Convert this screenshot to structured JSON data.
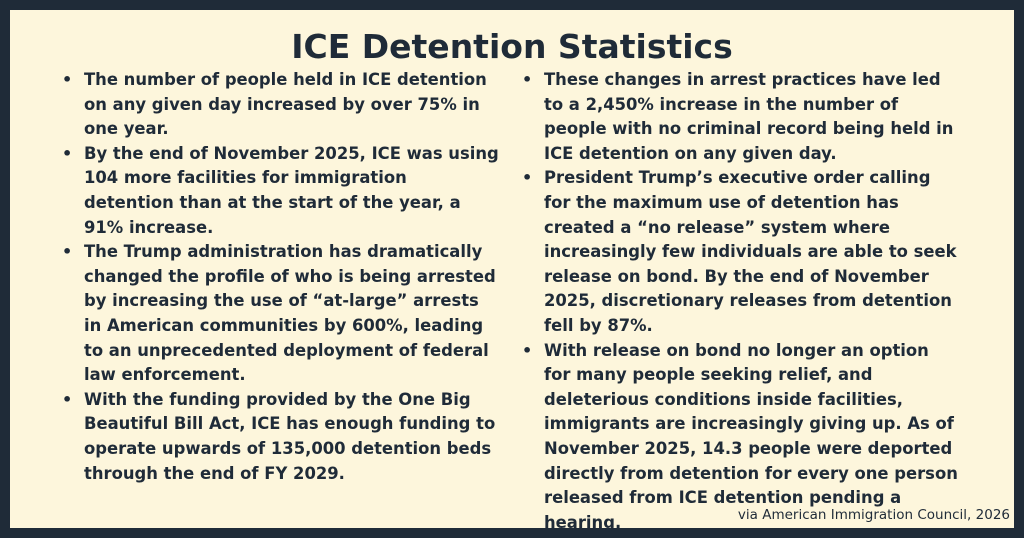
{
  "title": "ICE Detention Statistics",
  "colors": {
    "frame": "#1f2b38",
    "background": "#fdf6dc",
    "text": "#1f2b38"
  },
  "left_column": [
    "The number of people held in ICE detention on any given day increased by over 75% in one year.",
    "By the end of November 2025, ICE was using 104 more facilities for immigration detention than at the start of the year, a 91% increase.",
    "The Trump administration has dramatically changed the profile of who is being arrested by increasing the use of “at-large” arrests in American communities by 600%, leading to an unprecedented deployment of federal law enforcement.",
    "With the funding provided by the One Big Beautiful Bill Act, ICE has enough funding to operate upwards of 135,000 detention beds through the end of FY 2029."
  ],
  "right_column": [
    "These changes in arrest practices have led to a 2,450% increase in the number of people with no criminal record being held in ICE detention on any given day.",
    "President Trump’s executive order calling for the maximum use of detention has created a “no release” system where increasingly few individuals are able to seek release on bond. By the end of November 2025, discretionary releases from detention fell by 87%.",
    "With release on bond no longer an option for many people seeking relief, and deleterious conditions inside facilities, immigrants are increasingly giving up. As of November 2025, 14.3 people were deported directly from detention for every one person released from ICE detention pending a hearing."
  ],
  "bullet_glyph": "•",
  "credit": "via American Immigration Council, 2026"
}
